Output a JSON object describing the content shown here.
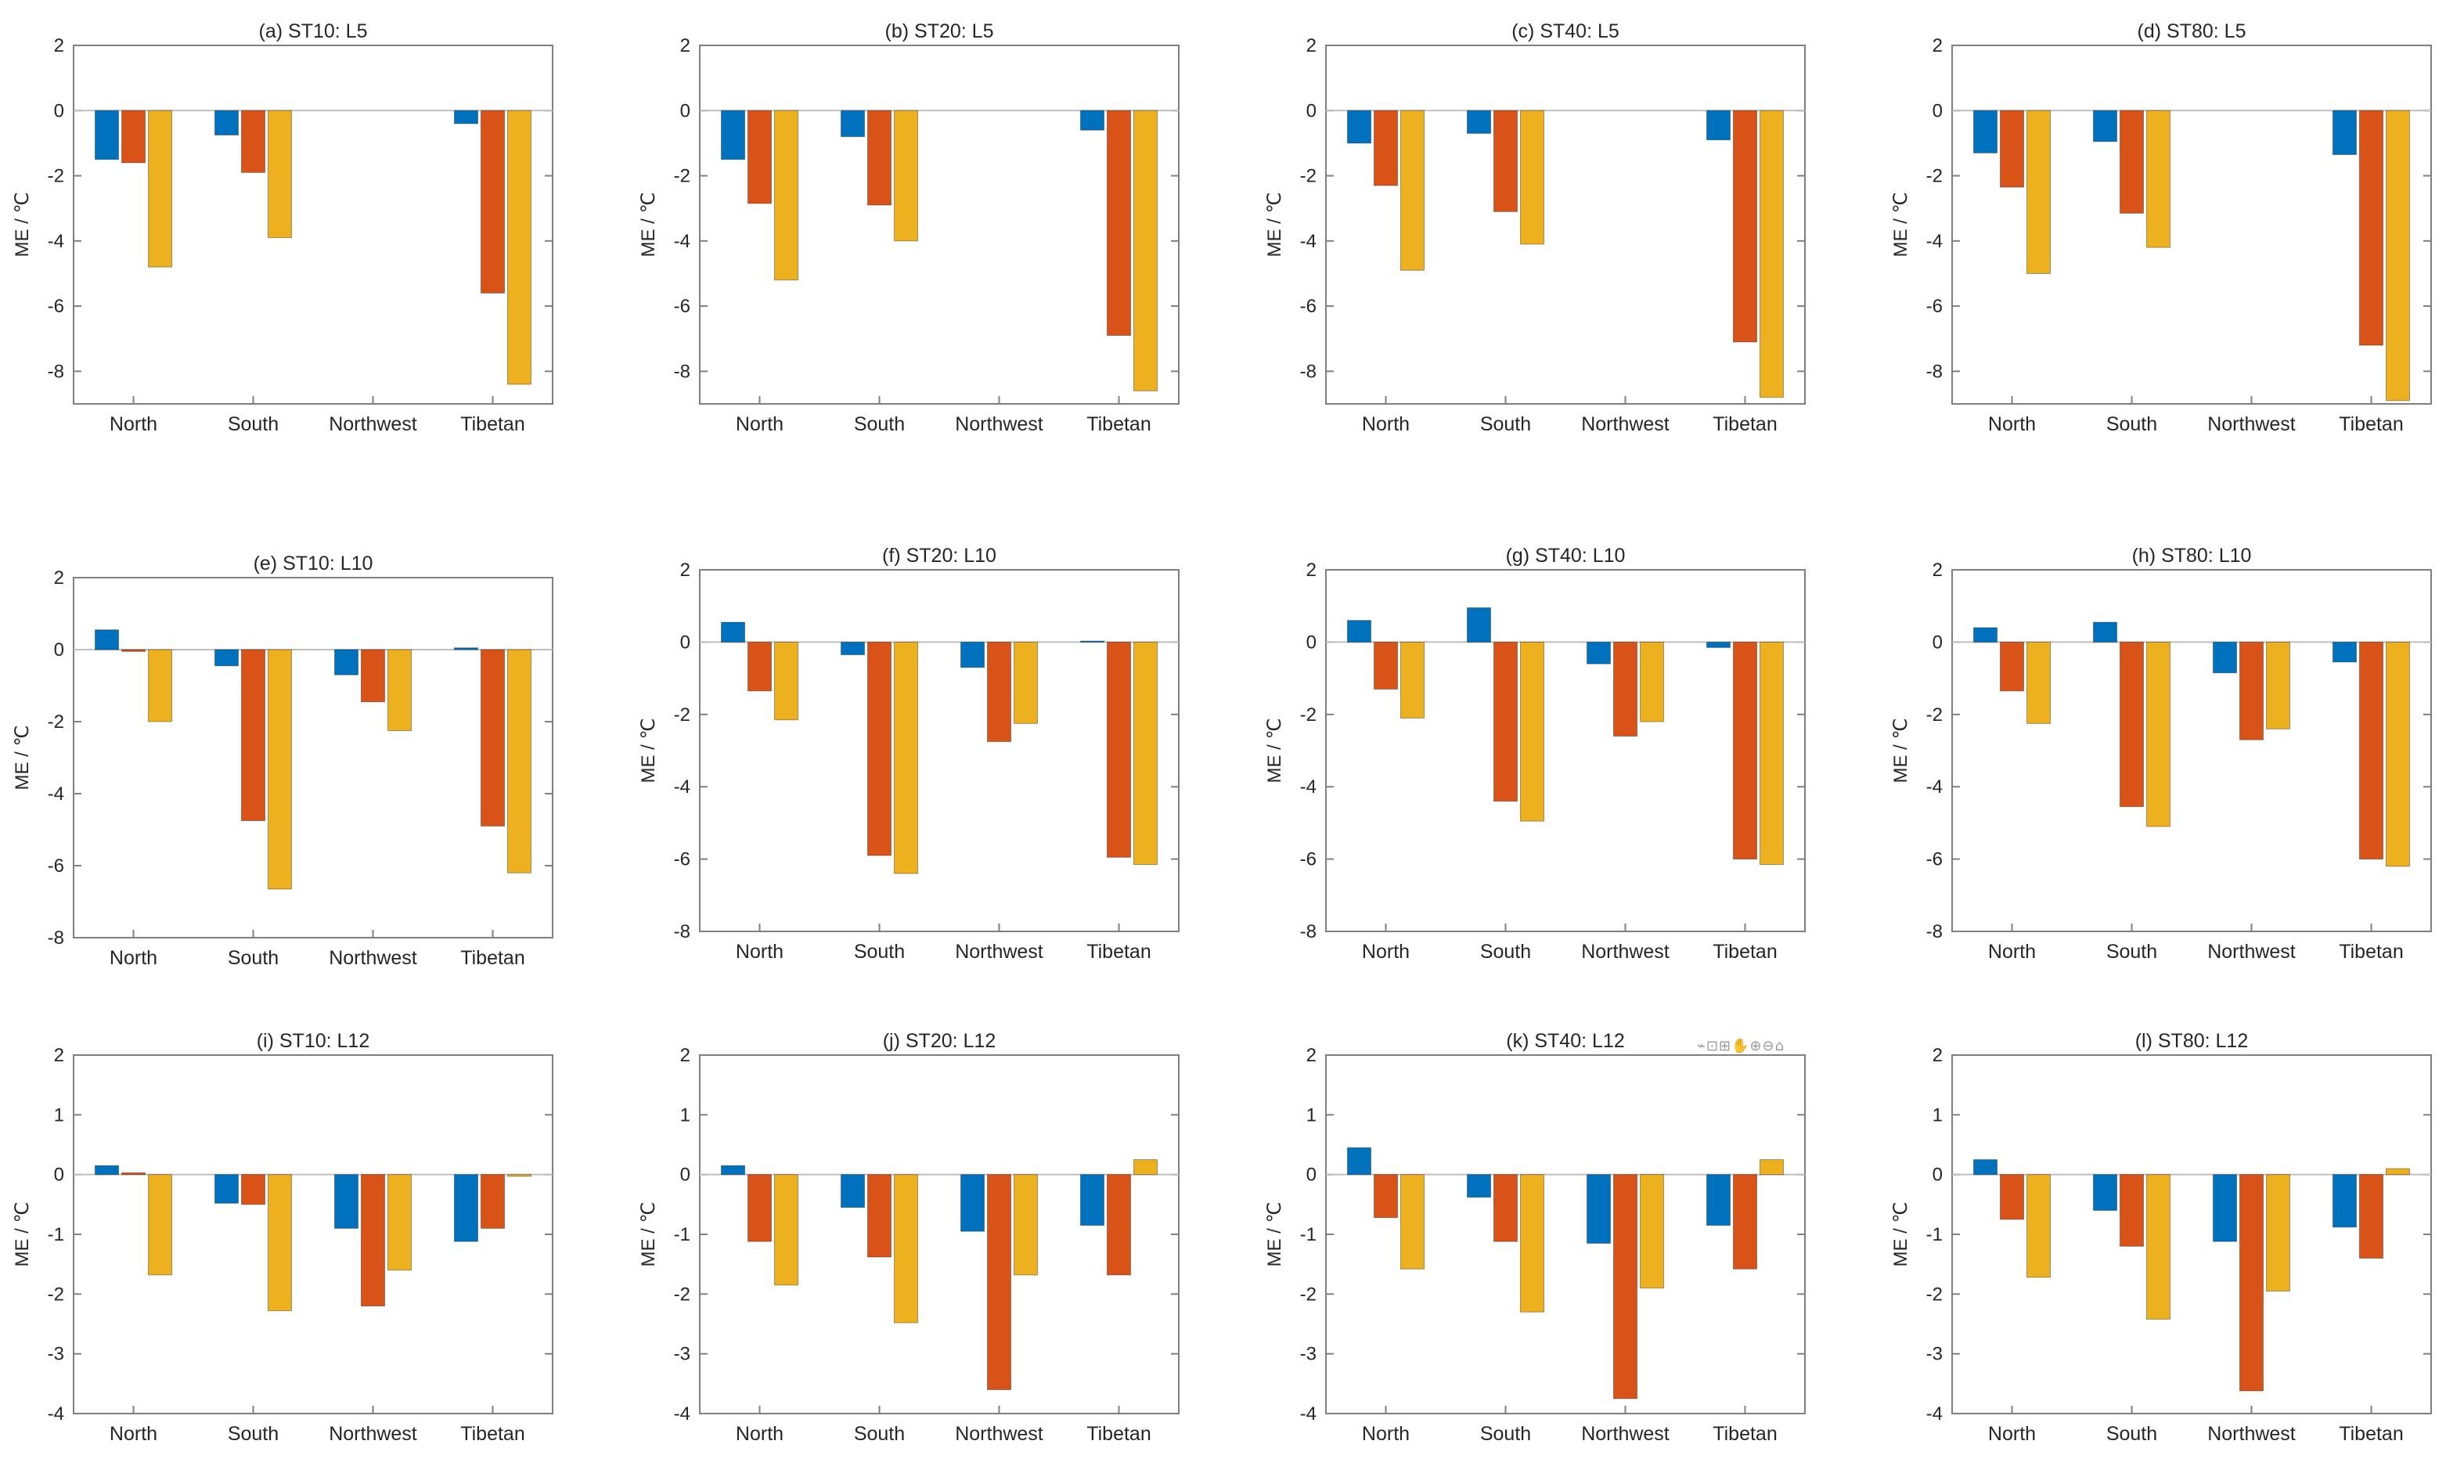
{
  "chart_data": [
    {
      "title": "(a) ST10: L5",
      "type": "bar",
      "ylabel": "ME / ℃",
      "ylim": [
        -9,
        2
      ],
      "yticks": [
        2,
        0,
        -2,
        -4,
        -6,
        -8
      ],
      "categories": [
        "North",
        "South",
        "Northwest",
        "Tibetan"
      ],
      "series": [
        {
          "name": "s1",
          "values": [
            -1.5,
            -0.75,
            0,
            -0.4
          ]
        },
        {
          "name": "s2",
          "values": [
            -1.6,
            -1.9,
            0,
            -5.6
          ]
        },
        {
          "name": "s3",
          "values": [
            -4.8,
            -3.9,
            0,
            -8.4
          ]
        }
      ]
    },
    {
      "title": "(b) ST20: L5",
      "type": "bar",
      "ylabel": "ME / ℃",
      "ylim": [
        -9,
        2
      ],
      "yticks": [
        2,
        0,
        -2,
        -4,
        -6,
        -8
      ],
      "categories": [
        "North",
        "South",
        "Northwest",
        "Tibetan"
      ],
      "series": [
        {
          "name": "s1",
          "values": [
            -1.5,
            -0.8,
            0,
            -0.6
          ]
        },
        {
          "name": "s2",
          "values": [
            -2.85,
            -2.9,
            0,
            -6.9
          ]
        },
        {
          "name": "s3",
          "values": [
            -5.2,
            -4.0,
            0,
            -8.6
          ]
        }
      ]
    },
    {
      "title": "(c) ST40: L5",
      "type": "bar",
      "ylabel": "ME / ℃",
      "ylim": [
        -9,
        2
      ],
      "yticks": [
        2,
        0,
        -2,
        -4,
        -6,
        -8
      ],
      "categories": [
        "North",
        "South",
        "Northwest",
        "Tibetan"
      ],
      "series": [
        {
          "name": "s1",
          "values": [
            -1.0,
            -0.7,
            0,
            -0.9
          ]
        },
        {
          "name": "s2",
          "values": [
            -2.3,
            -3.1,
            0,
            -7.1
          ]
        },
        {
          "name": "s3",
          "values": [
            -4.9,
            -4.1,
            0,
            -8.8
          ]
        }
      ]
    },
    {
      "title": "(d) ST80: L5",
      "type": "bar",
      "ylabel": "ME / ℃",
      "ylim": [
        -9,
        2
      ],
      "yticks": [
        2,
        0,
        -2,
        -4,
        -6,
        -8
      ],
      "categories": [
        "North",
        "South",
        "Northwest",
        "Tibetan"
      ],
      "series": [
        {
          "name": "s1",
          "values": [
            -1.3,
            -0.95,
            0,
            -1.35
          ]
        },
        {
          "name": "s2",
          "values": [
            -2.35,
            -3.15,
            0,
            -7.2
          ]
        },
        {
          "name": "s3",
          "values": [
            -5.0,
            -4.2,
            0,
            -8.9
          ]
        }
      ]
    },
    {
      "title": "(e) ST10: L10",
      "type": "bar",
      "ylabel": "ME / ℃",
      "ylim": [
        -8,
        2
      ],
      "yticks": [
        2,
        0,
        -2,
        -4,
        -6,
        -8
      ],
      "categories": [
        "North",
        "South",
        "Northwest",
        "Tibetan"
      ],
      "series": [
        {
          "name": "s1",
          "values": [
            0.55,
            -0.45,
            -0.7,
            0.05
          ]
        },
        {
          "name": "s2",
          "values": [
            -0.05,
            -4.75,
            -1.45,
            -4.9
          ]
        },
        {
          "name": "s3",
          "values": [
            -2.0,
            -6.65,
            -2.25,
            -6.2
          ]
        }
      ]
    },
    {
      "title": "(f) ST20: L10",
      "type": "bar",
      "ylabel": "ME / ℃",
      "ylim": [
        -8,
        2
      ],
      "yticks": [
        2,
        0,
        -2,
        -4,
        -6,
        -8
      ],
      "categories": [
        "North",
        "South",
        "Northwest",
        "Tibetan"
      ],
      "series": [
        {
          "name": "s1",
          "values": [
            0.55,
            -0.35,
            -0.7,
            0.03
          ]
        },
        {
          "name": "s2",
          "values": [
            -1.35,
            -5.9,
            -2.75,
            -5.95
          ]
        },
        {
          "name": "s3",
          "values": [
            -2.15,
            -6.4,
            -2.25,
            -6.15
          ]
        }
      ]
    },
    {
      "title": "(g) ST40: L10",
      "type": "bar",
      "ylabel": "ME / ℃",
      "ylim": [
        -8,
        2
      ],
      "yticks": [
        2,
        0,
        -2,
        -4,
        -6,
        -8
      ],
      "categories": [
        "North",
        "South",
        "Northwest",
        "Tibetan"
      ],
      "series": [
        {
          "name": "s1",
          "values": [
            0.6,
            0.95,
            -0.6,
            -0.15
          ]
        },
        {
          "name": "s2",
          "values": [
            -1.3,
            -4.4,
            -2.6,
            -6.0
          ]
        },
        {
          "name": "s3",
          "values": [
            -2.1,
            -4.95,
            -2.2,
            -6.15
          ]
        }
      ]
    },
    {
      "title": "(h) ST80: L10",
      "type": "bar",
      "ylabel": "ME / ℃",
      "ylim": [
        -8,
        2
      ],
      "yticks": [
        2,
        0,
        -2,
        -4,
        -6,
        -8
      ],
      "categories": [
        "North",
        "South",
        "Northwest",
        "Tibetan"
      ],
      "series": [
        {
          "name": "s1",
          "values": [
            0.4,
            0.55,
            -0.85,
            -0.55
          ]
        },
        {
          "name": "s2",
          "values": [
            -1.35,
            -4.55,
            -2.7,
            -6.0
          ]
        },
        {
          "name": "s3",
          "values": [
            -2.25,
            -5.1,
            -2.4,
            -6.2
          ]
        }
      ]
    },
    {
      "title": "(i) ST10: L12",
      "type": "bar",
      "ylabel": "ME / ℃",
      "ylim": [
        -4,
        2
      ],
      "yticks": [
        2,
        1,
        0,
        -1,
        -2,
        -3,
        -4
      ],
      "categories": [
        "North",
        "South",
        "Northwest",
        "Tibetan"
      ],
      "series": [
        {
          "name": "s1",
          "values": [
            0.15,
            -0.48,
            -0.9,
            -1.12
          ]
        },
        {
          "name": "s2",
          "values": [
            0.03,
            -0.5,
            -2.2,
            -0.9
          ]
        },
        {
          "name": "s3",
          "values": [
            -1.68,
            -2.28,
            -1.6,
            -0.03
          ]
        }
      ]
    },
    {
      "title": "(j) ST20: L12",
      "type": "bar",
      "ylabel": "ME / ℃",
      "ylim": [
        -4,
        2
      ],
      "yticks": [
        2,
        1,
        0,
        -1,
        -2,
        -3,
        -4
      ],
      "categories": [
        "North",
        "South",
        "Northwest",
        "Tibetan"
      ],
      "series": [
        {
          "name": "s1",
          "values": [
            0.15,
            -0.55,
            -0.95,
            -0.85
          ]
        },
        {
          "name": "s2",
          "values": [
            -1.12,
            -1.38,
            -3.6,
            -1.68
          ]
        },
        {
          "name": "s3",
          "values": [
            -1.85,
            -2.48,
            -1.68,
            0.25
          ]
        }
      ]
    },
    {
      "title": "(k) ST40: L12",
      "type": "bar",
      "ylabel": "ME / ℃",
      "ylim": [
        -4,
        2
      ],
      "yticks": [
        2,
        1,
        0,
        -1,
        -2,
        -3,
        -4
      ],
      "categories": [
        "North",
        "South",
        "Northwest",
        "Tibetan"
      ],
      "series": [
        {
          "name": "s1",
          "values": [
            0.45,
            -0.38,
            -1.15,
            -0.85
          ]
        },
        {
          "name": "s2",
          "values": [
            -0.72,
            -1.12,
            -3.75,
            -1.58
          ]
        },
        {
          "name": "s3",
          "values": [
            -1.58,
            -2.3,
            -1.9,
            0.25
          ]
        }
      ]
    },
    {
      "title": "(l) ST80: L12",
      "type": "bar",
      "ylabel": "ME / ℃",
      "ylim": [
        -4,
        2
      ],
      "yticks": [
        2,
        1,
        0,
        -1,
        -2,
        -3,
        -4
      ],
      "categories": [
        "North",
        "South",
        "Northwest",
        "Tibetan"
      ],
      "series": [
        {
          "name": "s1",
          "values": [
            0.25,
            -0.6,
            -1.12,
            -0.88
          ]
        },
        {
          "name": "s2",
          "values": [
            -0.75,
            -1.2,
            -3.62,
            -1.4
          ]
        },
        {
          "name": "s3",
          "values": [
            -1.72,
            -2.42,
            -1.95,
            0.1
          ]
        }
      ]
    }
  ],
  "colors": {
    "series": [
      "#0072BD",
      "#D95319",
      "#EDB120"
    ],
    "axis": "#7f7f7f",
    "zero": "#bfbfbf",
    "text": "#262626"
  },
  "toolbar": {
    "icons": [
      "brush-icon",
      "datatip-icon",
      "save-icon",
      "pan-icon",
      "zoom-in-icon",
      "zoom-out-icon",
      "home-icon"
    ],
    "label": "⌁⊡⊞✋⊕⊖⌂"
  }
}
